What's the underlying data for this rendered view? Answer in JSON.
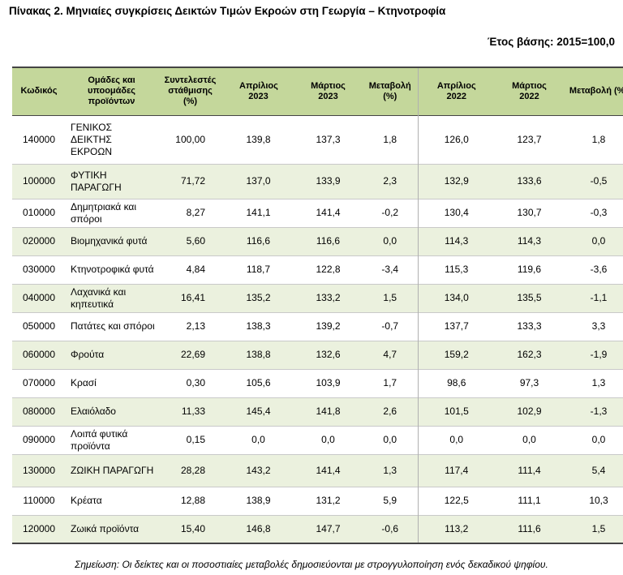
{
  "title": "Πίνακας 2. Μηνιαίες συγκρίσεις Δεικτών Τιμών Εκροών στη Γεωργία – Κτηνοτροφία",
  "base_year": "Έτος βάσης: 2015=100,0",
  "headers": {
    "code": "Κωδικός",
    "group": "Ομάδες και υποομάδες προϊόντων",
    "weights": "Συντελεστές στάθμισης (%)",
    "apr_2023": "Απρίλιος 2023",
    "mar_2023": "Μάρτιος 2023",
    "change_2023": "Μεταβολή (%)",
    "apr_2022": "Απρίλιος 2022",
    "mar_2022": "Μάρτιος 2022",
    "change_2022": "Μεταβολή (%)"
  },
  "rows": [
    {
      "code": "140000",
      "group": "ΓΕΝΙΚΟΣ ΔΕΙΚΤΗΣ ΕΚΡΟΩΝ",
      "weight": "100,00",
      "apr_2023": "139,8",
      "mar_2023": "137,3",
      "change_2023": "1,8",
      "apr_2022": "126,0",
      "mar_2022": "123,7",
      "change_2022": "1,8"
    },
    {
      "code": "100000",
      "group": "ΦΥΤΙΚΗ ΠΑΡΑΓΩΓΗ",
      "weight": "71,72",
      "apr_2023": "137,0",
      "mar_2023": "133,9",
      "change_2023": "2,3",
      "apr_2022": "132,9",
      "mar_2022": "133,6",
      "change_2022": "-0,5"
    },
    {
      "code": "010000",
      "group": "Δημητριακά και σπόροι",
      "weight": "8,27",
      "apr_2023": "141,1",
      "mar_2023": "141,4",
      "change_2023": "-0,2",
      "apr_2022": "130,4",
      "mar_2022": "130,7",
      "change_2022": "-0,3"
    },
    {
      "code": "020000",
      "group": "Βιομηχανικά φυτά",
      "weight": "5,60",
      "apr_2023": "116,6",
      "mar_2023": "116,6",
      "change_2023": "0,0",
      "apr_2022": "114,3",
      "mar_2022": "114,3",
      "change_2022": "0,0"
    },
    {
      "code": "030000",
      "group": "Κτηνοτροφικά φυτά",
      "weight": "4,84",
      "apr_2023": "118,7",
      "mar_2023": "122,8",
      "change_2023": "-3,4",
      "apr_2022": "115,3",
      "mar_2022": "119,6",
      "change_2022": "-3,6"
    },
    {
      "code": "040000",
      "group": "Λαχανικά και κηπευτικά",
      "weight": "16,41",
      "apr_2023": "135,2",
      "mar_2023": "133,2",
      "change_2023": "1,5",
      "apr_2022": "134,0",
      "mar_2022": "135,5",
      "change_2022": "-1,1"
    },
    {
      "code": "050000",
      "group": "Πατάτες και σπόροι",
      "weight": "2,13",
      "apr_2023": "138,3",
      "mar_2023": "139,2",
      "change_2023": "-0,7",
      "apr_2022": "137,7",
      "mar_2022": "133,3",
      "change_2022": "3,3"
    },
    {
      "code": "060000",
      "group": "Φρούτα",
      "weight": "22,69",
      "apr_2023": "138,8",
      "mar_2023": "132,6",
      "change_2023": "4,7",
      "apr_2022": "159,2",
      "mar_2022": "162,3",
      "change_2022": "-1,9"
    },
    {
      "code": "070000",
      "group": "Κρασί",
      "weight": "0,30",
      "apr_2023": "105,6",
      "mar_2023": "103,9",
      "change_2023": "1,7",
      "apr_2022": "98,6",
      "mar_2022": "97,3",
      "change_2022": "1,3"
    },
    {
      "code": "080000",
      "group": "Ελαιόλαδο",
      "weight": "11,33",
      "apr_2023": "145,4",
      "mar_2023": "141,8",
      "change_2023": "2,6",
      "apr_2022": "101,5",
      "mar_2022": "102,9",
      "change_2022": "-1,3"
    },
    {
      "code": "090000",
      "group": "Λοιπά φυτικά προϊόντα",
      "weight": "0,15",
      "apr_2023": "0,0",
      "mar_2023": "0,0",
      "change_2023": "0,0",
      "apr_2022": "0,0",
      "mar_2022": "0,0",
      "change_2022": "0,0"
    },
    {
      "code": "130000",
      "group": "ΖΩΙΚΗ ΠΑΡΑΓΩΓΗ",
      "weight": "28,28",
      "apr_2023": "143,2",
      "mar_2023": "141,4",
      "change_2023": "1,3",
      "apr_2022": "117,4",
      "mar_2022": "111,4",
      "change_2022": "5,4"
    },
    {
      "code": "110000",
      "group": "Κρέατα",
      "weight": "12,88",
      "apr_2023": "138,9",
      "mar_2023": "131,2",
      "change_2023": "5,9",
      "apr_2022": "122,5",
      "mar_2022": "111,1",
      "change_2022": "10,3"
    },
    {
      "code": "120000",
      "group": "Ζωικά προϊόντα",
      "weight": "15,40",
      "apr_2023": "146,8",
      "mar_2023": "147,7",
      "change_2023": "-0,6",
      "apr_2022": "113,2",
      "mar_2022": "111,6",
      "change_2022": "1,5"
    }
  ],
  "note": "Σημείωση: Οι δείκτες και οι ποσοστιαίες μεταβολές δημοσιεύονται με στρογγυλοποίηση ενός δεκαδικού ψηφίου.",
  "colors": {
    "header_bg": "#c4d79b",
    "alt_row_bg": "#ebf1de"
  }
}
